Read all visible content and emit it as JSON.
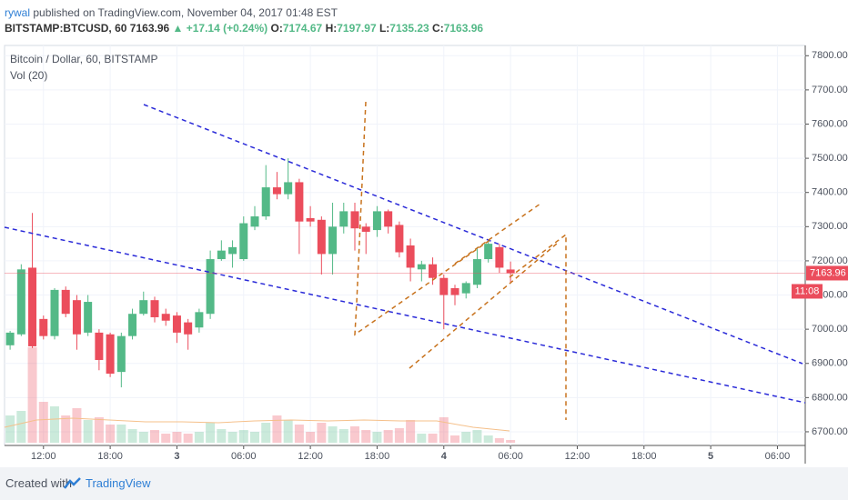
{
  "header": {
    "publisher": "rywal",
    "published": "published on TradingView.com, November 04, 2017 01:48 EST",
    "symbol": "BITSTAMP:BTCUSD, 60",
    "last": "7163.96",
    "change": "▲ +17.14 (+0.24%)",
    "ohlc_labels": [
      "O:",
      "H:",
      "L:",
      "C:"
    ]
  },
  "footer": {
    "created": "Created with",
    "brand": "TradingView"
  },
  "chart_data": {
    "type": "candlestick",
    "title": "Bitcoin / Dollar, 60, BITSTAMP",
    "indicator": "Vol (20)",
    "up_color": "#53b987",
    "down_color": "#eb4d5c",
    "grid": true,
    "countdown": "11:08",
    "x": [
      -3,
      -2,
      -1,
      0,
      1,
      2,
      3,
      4,
      5,
      6,
      7,
      8,
      9,
      10,
      11,
      12,
      13,
      14,
      15,
      16,
      17,
      18,
      19,
      20,
      21,
      22,
      23,
      24,
      25,
      26,
      27,
      28,
      29,
      30,
      31,
      32,
      33,
      34,
      35,
      36,
      37,
      38,
      39,
      40,
      41,
      42
    ],
    "open": [
      6953,
      6985,
      7180,
      7030,
      6980,
      7115,
      7085,
      6990,
      6990,
      6985,
      6875,
      6980,
      7045,
      7085,
      7045,
      7040,
      7020,
      7005,
      7045,
      7205,
      7220,
      7205,
      7300,
      7330,
      7415,
      7395,
      7430,
      7325,
      7320,
      7220,
      7300,
      7345,
      7300,
      7290,
      7345,
      7305,
      7245,
      7175,
      7190,
      7150,
      7120,
      7105,
      7130,
      7205,
      7240,
      7174.67
    ],
    "high": [
      6995,
      7190,
      7340,
      7040,
      7120,
      7125,
      7100,
      7100,
      7000,
      6990,
      6990,
      7060,
      7110,
      7095,
      7060,
      7050,
      7030,
      7060,
      7230,
      7260,
      7260,
      7330,
      7360,
      7480,
      7460,
      7500,
      7440,
      7360,
      7330,
      7370,
      7370,
      7370,
      7310,
      7360,
      7350,
      7315,
      7265,
      7200,
      7210,
      7160,
      7130,
      7140,
      7240,
      7260,
      7250,
      7197.97
    ],
    "low": [
      6940,
      6980,
      6945,
      6970,
      6970,
      7035,
      6940,
      6980,
      6880,
      6860,
      6830,
      6970,
      7040,
      7020,
      7010,
      6960,
      6940,
      6990,
      7030,
      7200,
      7180,
      7200,
      7290,
      7320,
      7380,
      7380,
      7220,
      7300,
      7160,
      7160,
      7280,
      7230,
      7220,
      7270,
      7280,
      7210,
      7140,
      7140,
      7130,
      7000,
      7070,
      7090,
      7120,
      7195,
      7165,
      7135.23
    ],
    "close": [
      6990,
      7175,
      6950,
      6980,
      7115,
      7045,
      6985,
      7080,
      6910,
      6870,
      6980,
      7045,
      7085,
      7035,
      7025,
      6990,
      6985,
      7050,
      7205,
      7230,
      7240,
      7310,
      7330,
      7415,
      7395,
      7430,
      7315,
      7315,
      7220,
      7300,
      7345,
      7295,
      7285,
      7345,
      7300,
      7225,
      7180,
      7190,
      7150,
      7100,
      7100,
      7135,
      7205,
      7250,
      7180,
      7163.96
    ],
    "volume": [
      30,
      35,
      105,
      45,
      40,
      30,
      38,
      25,
      28,
      20,
      20,
      15,
      12,
      14,
      10,
      12,
      10,
      12,
      22,
      15,
      12,
      14,
      12,
      22,
      30,
      25,
      20,
      12,
      22,
      18,
      15,
      18,
      14,
      12,
      14,
      16,
      25,
      10,
      10,
      28,
      8,
      12,
      14,
      8,
      5,
      3
    ],
    "xlim": [
      -3.5,
      68.5
    ],
    "xticks": [
      {
        "value": 0,
        "label": "12:00"
      },
      {
        "value": 6,
        "label": "18:00"
      },
      {
        "value": 12,
        "label": "3"
      },
      {
        "value": 18,
        "label": "06:00"
      },
      {
        "value": 24,
        "label": "12:00"
      },
      {
        "value": 30,
        "label": "18:00"
      },
      {
        "value": 36,
        "label": "4"
      },
      {
        "value": 42,
        "label": "06:00"
      },
      {
        "value": 48,
        "label": "12:00"
      },
      {
        "value": 54,
        "label": "18:00"
      },
      {
        "value": 60,
        "label": "5"
      },
      {
        "value": 66,
        "label": "06:00"
      }
    ],
    "ylim": [
      6660,
      7830
    ],
    "yticks": [
      {
        "value": 6700,
        "label": "6700.00"
      },
      {
        "value": 6800,
        "label": "6800.00"
      },
      {
        "value": 6900,
        "label": "6900.00"
      },
      {
        "value": 7000,
        "label": "7000.00"
      },
      {
        "value": 7100,
        "label": "7100.00"
      },
      {
        "value": 7200,
        "label": "7200.00"
      },
      {
        "value": 7300,
        "label": "7300.00"
      },
      {
        "value": 7400,
        "label": "7400.00"
      },
      {
        "value": 7500,
        "label": "7500.00"
      },
      {
        "value": 7600,
        "label": "7600.00"
      },
      {
        "value": 7700,
        "label": "7700.00"
      },
      {
        "value": 7800,
        "label": "7800.00"
      }
    ]
  }
}
